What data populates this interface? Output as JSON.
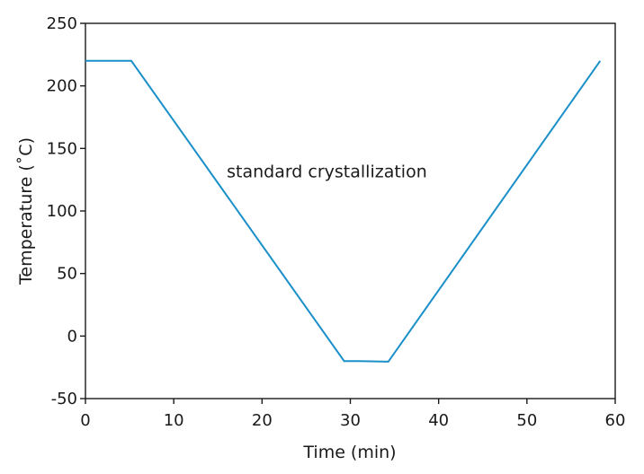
{
  "chart_data": {
    "type": "line",
    "title": "",
    "xlabel": "Time (min)",
    "ylabel": "Temperature (˚C)",
    "xlim": [
      0,
      60
    ],
    "ylim": [
      -50,
      250
    ],
    "xticks": [
      0,
      10,
      20,
      30,
      40,
      50,
      60
    ],
    "xtick_labels": [
      "0",
      "10",
      "20",
      "30",
      "40",
      "50",
      "60"
    ],
    "yticks": [
      -50,
      0,
      50,
      100,
      150,
      200,
      250
    ],
    "ytick_labels": [
      "-50",
      "0",
      "50",
      "100",
      "150",
      "200",
      "250"
    ],
    "grid": false,
    "legend": "none",
    "annotations": [
      {
        "text": "standard crystallization",
        "x": 16,
        "y": 127
      }
    ],
    "series": [
      {
        "color": "#1a8fc9",
        "x": [
          0,
          5.2,
          29.3,
          31.0,
          34.3,
          58.3
        ],
        "y": [
          220,
          220,
          -20,
          -20,
          -20.5,
          220
        ]
      }
    ]
  }
}
